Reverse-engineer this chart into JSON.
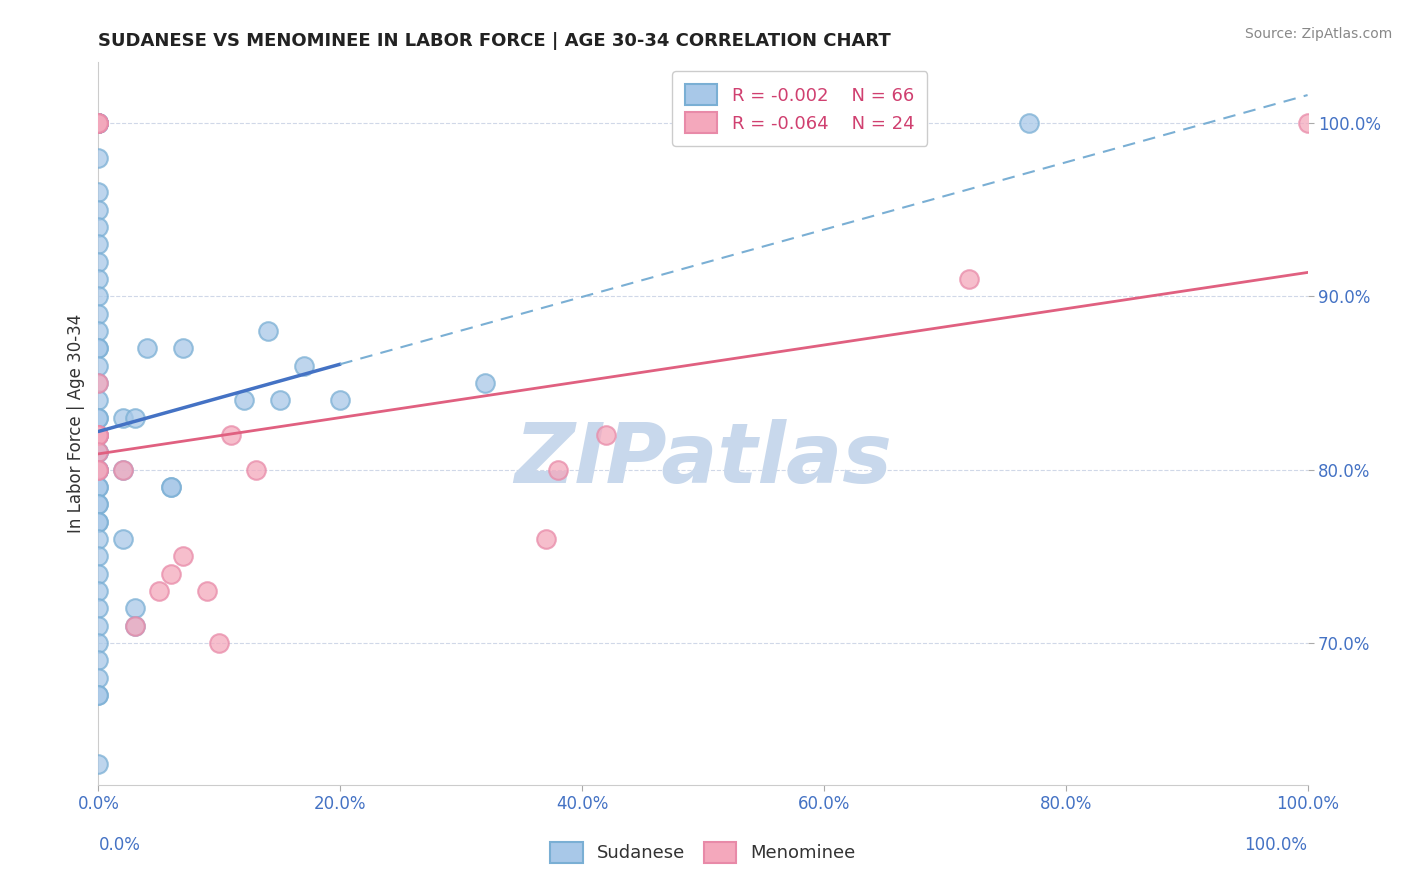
{
  "title": "SUDANESE VS MENOMINEE IN LABOR FORCE | AGE 30-34 CORRELATION CHART",
  "source": "Source: ZipAtlas.com",
  "ylabel": "In Labor Force | Age 30-34",
  "xlim": [
    0.0,
    1.0
  ],
  "ylim": [
    0.618,
    1.035
  ],
  "yticks": [
    0.7,
    0.8,
    0.9,
    1.0
  ],
  "ytick_labels": [
    "70.0%",
    "80.0%",
    "90.0%",
    "100.0%"
  ],
  "xticks": [
    0.0,
    0.2,
    0.4,
    0.6,
    0.8,
    1.0
  ],
  "xtick_labels": [
    "0.0%",
    "20.0%",
    "40.0%",
    "60.0%",
    "80.0%",
    "100.0%"
  ],
  "legend_line1": "R = -0.002    N = 66",
  "legend_line2": "R = -0.064    N = 24",
  "blue_scatter_color": "#a8c8e8",
  "blue_edge_color": "#7aafd4",
  "pink_scatter_color": "#f4a8bc",
  "pink_edge_color": "#e88aa8",
  "blue_solid_color": "#4472c4",
  "blue_dashed_color": "#7aafd4",
  "pink_line_color": "#e06080",
  "grid_color": "#d0d8e8",
  "background_color": "#ffffff",
  "tick_color": "#4472c4",
  "watermark_text": "ZIPatlas",
  "watermark_color": "#c8d8ec",
  "sudanese_x": [
    0.0,
    0.0,
    0.0,
    0.0,
    0.0,
    0.0,
    0.0,
    0.0,
    0.0,
    0.0,
    0.0,
    0.0,
    0.0,
    0.0,
    0.0,
    0.0,
    0.0,
    0.0,
    0.0,
    0.0,
    0.0,
    0.0,
    0.0,
    0.0,
    0.0,
    0.0,
    0.0,
    0.0,
    0.0,
    0.0,
    0.0,
    0.0,
    0.0,
    0.0,
    0.0,
    0.0,
    0.0,
    0.0,
    0.0,
    0.0,
    0.0,
    0.0,
    0.0,
    0.0,
    0.0,
    0.0,
    0.0,
    0.0,
    0.0,
    0.02,
    0.02,
    0.02,
    0.03,
    0.03,
    0.03,
    0.04,
    0.06,
    0.06,
    0.07,
    0.12,
    0.14,
    0.15,
    0.17,
    0.2,
    0.32,
    0.77
  ],
  "sudanese_y": [
    1.0,
    1.0,
    1.0,
    1.0,
    1.0,
    1.0,
    0.98,
    0.96,
    0.95,
    0.94,
    0.93,
    0.92,
    0.91,
    0.9,
    0.89,
    0.88,
    0.87,
    0.87,
    0.86,
    0.85,
    0.84,
    0.83,
    0.83,
    0.82,
    0.82,
    0.81,
    0.81,
    0.8,
    0.8,
    0.8,
    0.79,
    0.79,
    0.78,
    0.78,
    0.77,
    0.77,
    0.76,
    0.75,
    0.74,
    0.73,
    0.72,
    0.71,
    0.7,
    0.69,
    0.68,
    0.67,
    0.67,
    0.63,
    0.61,
    0.8,
    0.83,
    0.76,
    0.83,
    0.72,
    0.71,
    0.87,
    0.79,
    0.79,
    0.87,
    0.84,
    0.88,
    0.84,
    0.86,
    0.84,
    0.85,
    1.0
  ],
  "menominee_x": [
    0.0,
    0.0,
    0.0,
    0.0,
    0.0,
    0.0,
    0.0,
    0.0,
    0.0,
    0.0,
    0.02,
    0.03,
    0.05,
    0.06,
    0.07,
    0.09,
    0.1,
    0.11,
    0.13,
    0.37,
    0.38,
    0.42,
    0.72,
    1.0
  ],
  "menominee_y": [
    1.0,
    1.0,
    1.0,
    0.85,
    0.82,
    0.82,
    0.82,
    0.81,
    0.8,
    0.8,
    0.8,
    0.71,
    0.73,
    0.74,
    0.75,
    0.73,
    0.7,
    0.82,
    0.8,
    0.76,
    0.8,
    0.82,
    0.91,
    1.0
  ],
  "marker_size": 180,
  "marker_linewidth": 1.5
}
